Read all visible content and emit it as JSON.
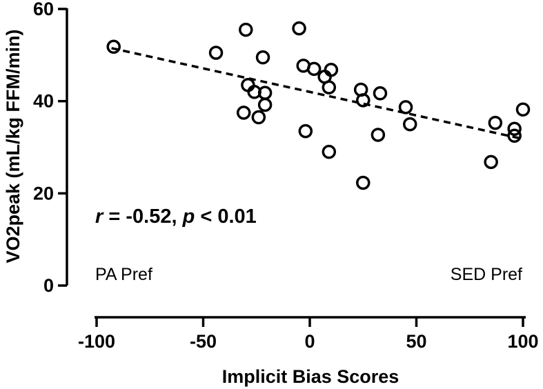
{
  "chart_data": {
    "type": "scatter",
    "title": "",
    "xlabel": "Implicit Bias Scores",
    "ylabel": "VO2peak (mL/kg FFM/min)",
    "xlim": [
      -100,
      100
    ],
    "ylim": [
      0,
      60
    ],
    "x_ticks": [
      "-100",
      "-50",
      "0",
      "50",
      "100"
    ],
    "y_ticks": [
      "0",
      "20",
      "40",
      "60"
    ],
    "grid": false,
    "points": [
      {
        "x": -92,
        "y": 51.8
      },
      {
        "x": -44,
        "y": 50.5
      },
      {
        "x": -30,
        "y": 55.5
      },
      {
        "x": -5,
        "y": 55.8
      },
      {
        "x": -22,
        "y": 49.5
      },
      {
        "x": -3,
        "y": 47.7
      },
      {
        "x": 2,
        "y": 47.0
      },
      {
        "x": 10,
        "y": 46.8
      },
      {
        "x": 7,
        "y": 45.3
      },
      {
        "x": 9,
        "y": 43.0
      },
      {
        "x": -29,
        "y": 43.5
      },
      {
        "x": -26,
        "y": 42.0
      },
      {
        "x": -21,
        "y": 41.8
      },
      {
        "x": -21,
        "y": 39.2
      },
      {
        "x": -31,
        "y": 37.5
      },
      {
        "x": -24,
        "y": 36.5
      },
      {
        "x": 24,
        "y": 42.5
      },
      {
        "x": 33,
        "y": 41.7
      },
      {
        "x": 25,
        "y": 40.2
      },
      {
        "x": 45,
        "y": 38.7
      },
      {
        "x": 47,
        "y": 35.0
      },
      {
        "x": -2,
        "y": 33.5
      },
      {
        "x": 32,
        "y": 32.7
      },
      {
        "x": 9,
        "y": 29.0
      },
      {
        "x": 25,
        "y": 22.3
      },
      {
        "x": 87,
        "y": 35.3
      },
      {
        "x": 96,
        "y": 34.0
      },
      {
        "x": 100,
        "y": 38.2
      },
      {
        "x": 96,
        "y": 32.5
      },
      {
        "x": 85,
        "y": 26.8
      }
    ],
    "trendline": {
      "x1": -93,
      "y1": 51.5,
      "x2": 100,
      "y2": 31.8,
      "style": "dashed"
    }
  },
  "annotations": {
    "stat_r": "r",
    "stat_rest1": " = -0.52, ",
    "stat_p": "p",
    "stat_rest2": " < 0.01",
    "left_label": "PA Pref",
    "right_label": "SED Pref"
  }
}
